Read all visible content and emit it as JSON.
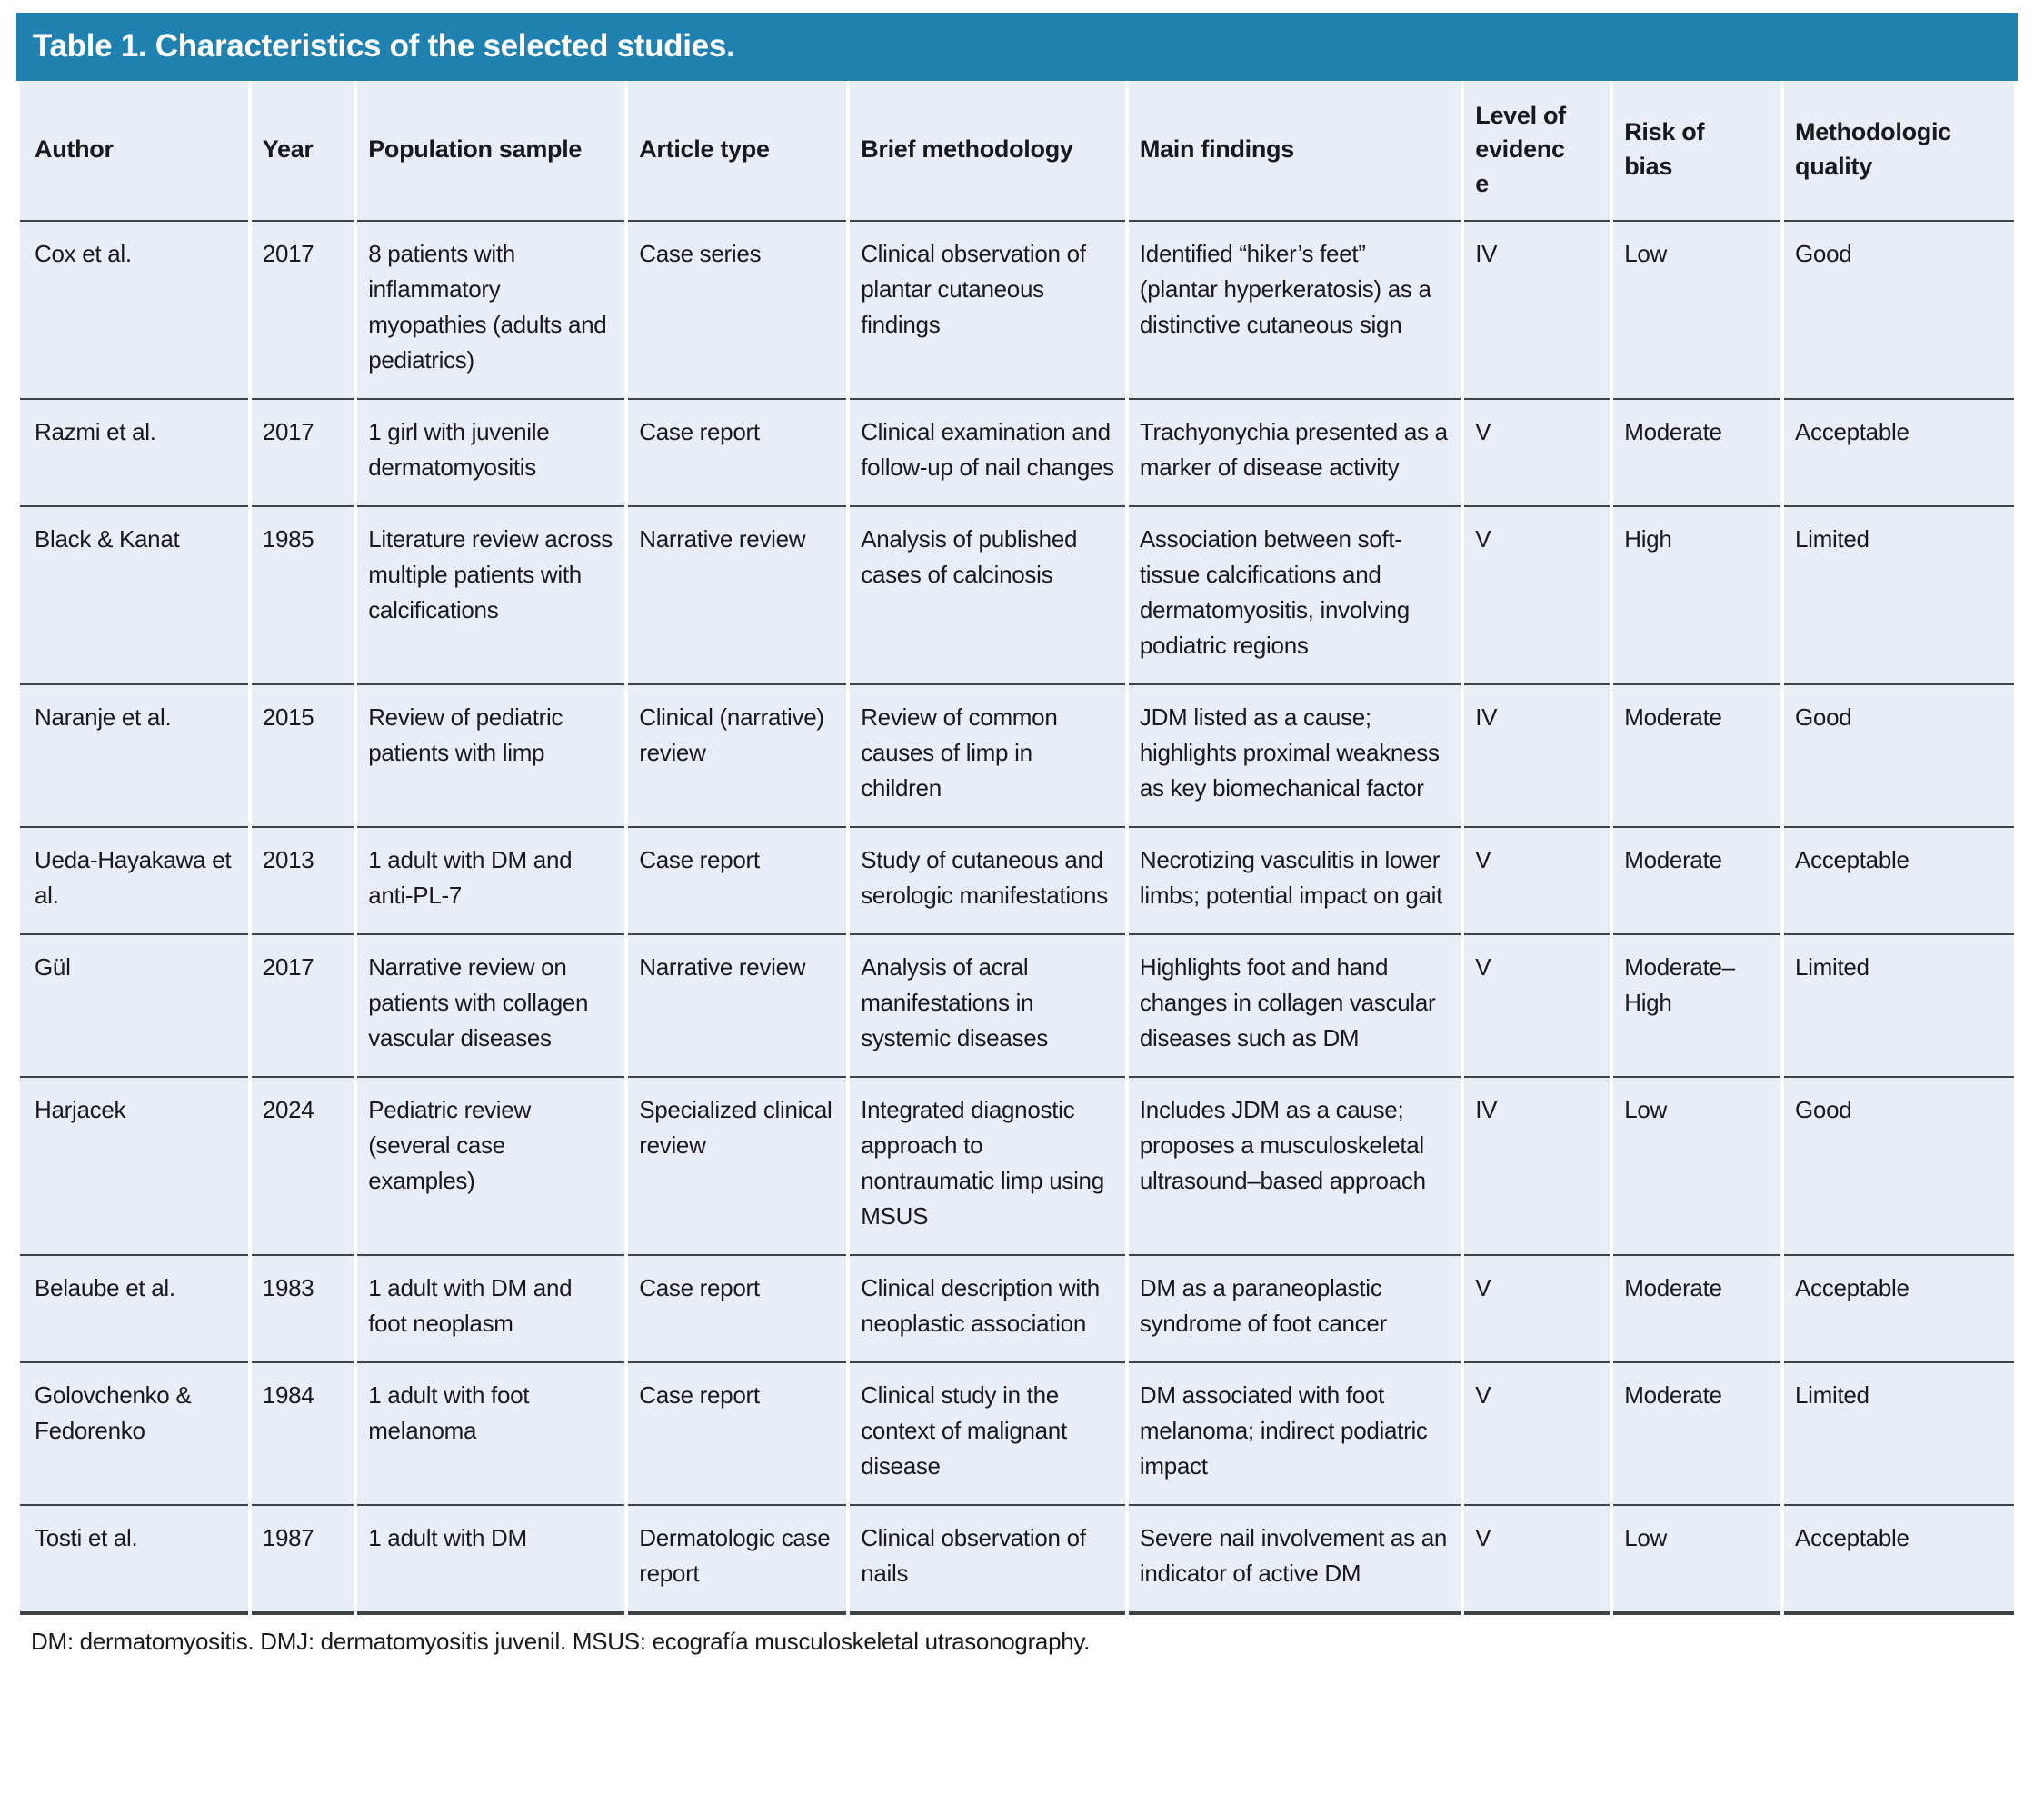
{
  "title": "Table 1. Characteristics of the selected studies.",
  "colors": {
    "title_bar_bg": "#1e81af",
    "title_text": "#ffffff",
    "cell_bg": "#e9eef6",
    "rule": "#3d4247",
    "text": "#17191c"
  },
  "columns": [
    "Author",
    "Year",
    "Population sample",
    "Article type",
    "Brief methodology",
    "Main findings",
    "Level of evidence",
    "Risk of bias",
    "Methodologic quality"
  ],
  "col_keys": [
    "author",
    "year",
    "population-sample",
    "article-type",
    "brief-methodology",
    "main-findings",
    "level-of-evidence",
    "risk-of-bias",
    "methodologic-quality"
  ],
  "rows": [
    {
      "cells": [
        "Cox et al.",
        "2017",
        "8 patients with inflammatory myopathies (adults and pediatrics)",
        "Case series",
        "Clinical observation of plantar cutaneous findings",
        "Identified “hiker’s feet” (plantar hyperkeratosis) as a distinctive cutaneous sign",
        "IV",
        "Low",
        "Good"
      ]
    },
    {
      "cells": [
        "Razmi et al.",
        "2017",
        "1 girl with juvenile dermatomyositis",
        "Case report",
        "Clinical examination and follow-up of nail changes",
        "Trachyonychia presented as a marker of disease activity",
        "V",
        "Moderate",
        "Acceptable"
      ]
    },
    {
      "cells": [
        "Black & Kanat",
        "1985",
        "Literature review across multiple patients with calcifications",
        "Narrative review",
        "Analysis of published cases of calcinosis",
        "Association between soft-tissue calcifications and dermatomyositis, involving podiatric regions",
        "V",
        "High",
        "Limited"
      ]
    },
    {
      "cells": [
        "Naranje et al.",
        "2015",
        "Review of pediatric patients with limp",
        "Clinical (narrative) review",
        "Review of common causes of limp in children",
        "JDM listed as a cause; highlights proximal weakness as key biomechanical factor",
        "IV",
        "Moderate",
        "Good"
      ]
    },
    {
      "cells": [
        "Ueda-Hayakawa et al.",
        "2013",
        "1 adult with DM and anti-PL-7",
        "Case report",
        "Study of cutaneous and serologic manifestations",
        "Necrotizing vasculitis in lower limbs; potential impact on gait",
        "V",
        "Moderate",
        "Acceptable"
      ]
    },
    {
      "cells": [
        "Gül",
        "2017",
        "Narrative review on patients with collagen vascular diseases",
        "Narrative review",
        "Analysis of acral manifestations in systemic diseases",
        "Highlights foot and hand changes in collagen vascular diseases such as DM",
        "V",
        "Moderate–High",
        "Limited"
      ]
    },
    {
      "cells": [
        "Harjacek",
        "2024",
        "Pediatric review (several case examples)",
        "Specialized clinical review",
        "Integrated diagnostic approach to nontraumatic limp using MSUS",
        "Includes JDM as a cause; proposes a musculoskeletal ultrasound–based approach",
        "IV",
        "Low",
        "Good"
      ]
    },
    {
      "cells": [
        "Belaube et al.",
        "1983",
        "1 adult with DM and foot neoplasm",
        "Case report",
        "Clinical description with neoplastic association",
        "DM as a paraneoplastic syndrome of foot cancer",
        "V",
        "Moderate",
        "Acceptable"
      ]
    },
    {
      "cells": [
        "Golovchenko & Fedorenko",
        "1984",
        "1 adult with foot melanoma",
        "Case report",
        "Clinical study in the context of malignant disease",
        "DM associated with foot melanoma; indirect podiatric impact",
        "V",
        "Moderate",
        "Limited"
      ]
    },
    {
      "cells": [
        "Tosti et al.",
        "1987",
        "1 adult with DM",
        "Dermatologic case report",
        "Clinical observation of nails",
        "Severe nail involvement as an indicator of active DM",
        "V",
        "Low",
        "Acceptable"
      ]
    }
  ],
  "footnote": "DM: dermatomyositis. DMJ: dermatomyositis juvenil. MSUS: ecografía musculoskeletal utrasonography."
}
